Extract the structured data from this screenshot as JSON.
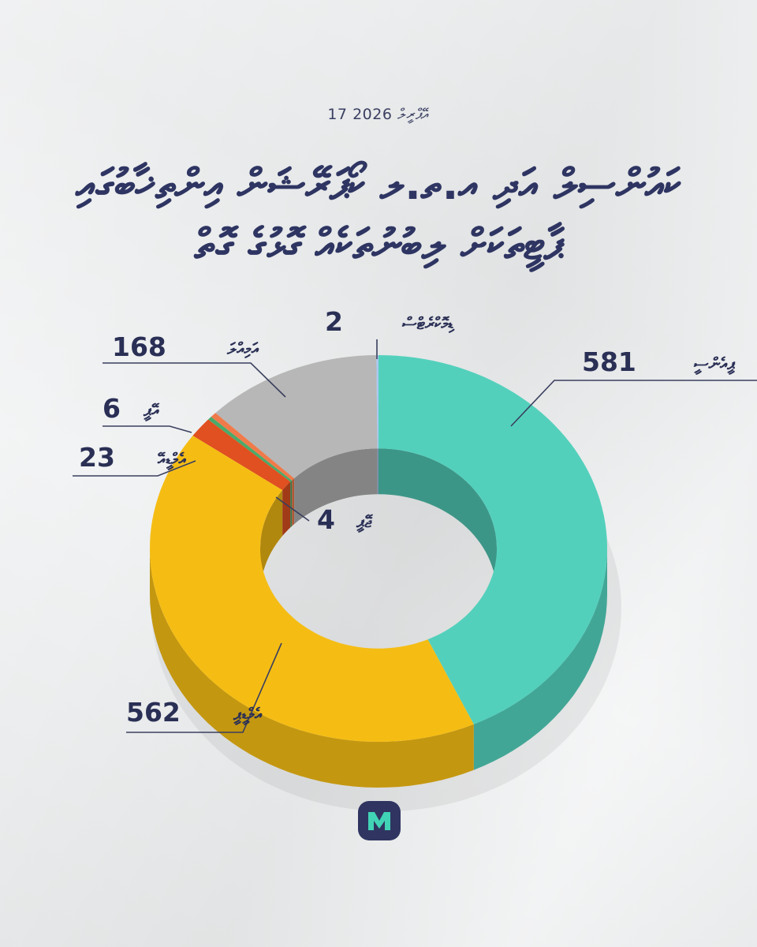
{
  "date": "17 އޭޕްރީލް 2026",
  "title_lines": [
    "ކައުންސިލް އަދި އ.ތ.ލ ކޯޕަރޭޝަން އިންތިޚާބުގައި",
    "ޕާޓީތަކަށް ލިބުނުތަކެއް ގޮޅުގެ ގޮތް"
  ],
  "chart_data": {
    "type": "pie",
    "style": "donut-3d",
    "title": "",
    "slices": [
      {
        "label": "ޕީއެންސީ",
        "value": 581,
        "color": "#53d0bc"
      },
      {
        "label": "އެމްޑީޕީ",
        "value": 562,
        "color": "#f5bd14"
      },
      {
        "label": "އެމްޑީއޭ",
        "value": 23,
        "color": "#e05020"
      },
      {
        "label": "ޖޭޕީ",
        "value": 4,
        "color": "#4aaa6a"
      },
      {
        "label": "އޭޕީ",
        "value": 6,
        "color": "#f07a4a"
      },
      {
        "label": "އަމިއްލަ",
        "value": 168,
        "color": "#b7b7b7"
      },
      {
        "label": "ޑިމޮކްރެޓްސް",
        "value": 2,
        "color": "#a9c9f0"
      }
    ]
  },
  "logo": {
    "letter": "M",
    "color": "#2f3560",
    "accent": "#41d3b5"
  }
}
